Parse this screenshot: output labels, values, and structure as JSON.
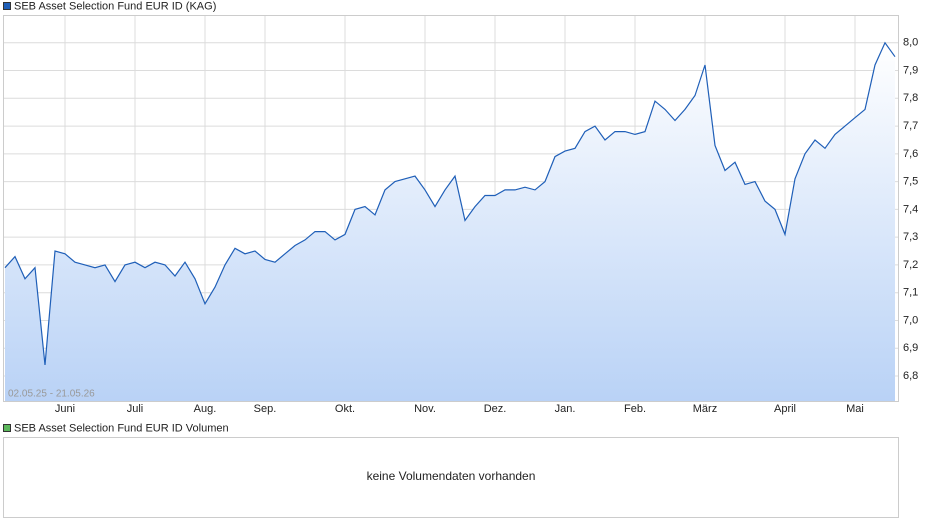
{
  "chart_data": {
    "type": "line",
    "range_label": "02.05.25 - 21.05.26",
    "categories": [
      null,
      null,
      null,
      null,
      null,
      null,
      "Juni",
      null,
      null,
      null,
      null,
      null,
      null,
      "Juli",
      null,
      null,
      null,
      null,
      null,
      null,
      "Aug.",
      null,
      null,
      null,
      null,
      null,
      "Sep.",
      null,
      null,
      null,
      null,
      null,
      null,
      null,
      "Okt.",
      null,
      null,
      null,
      null,
      null,
      null,
      null,
      "Nov.",
      null,
      null,
      null,
      null,
      null,
      null,
      "Dez.",
      null,
      null,
      null,
      null,
      null,
      null,
      "Jan.",
      null,
      null,
      null,
      null,
      null,
      null,
      "Feb.",
      null,
      null,
      null,
      null,
      null,
      null,
      "März",
      null,
      null,
      null,
      null,
      null,
      null,
      null,
      "April",
      null,
      null,
      null,
      null,
      null,
      null,
      "Mai",
      null,
      null,
      null,
      null
    ],
    "series": [
      {
        "name": "SEB Asset Selection Fund EUR ID (KAG)",
        "color": "#1f5fb8",
        "values": [
          7.19,
          7.23,
          7.15,
          7.19,
          6.84,
          7.25,
          7.24,
          7.21,
          7.2,
          7.19,
          7.2,
          7.14,
          7.2,
          7.21,
          7.19,
          7.21,
          7.2,
          7.16,
          7.21,
          7.15,
          7.06,
          7.12,
          7.2,
          7.26,
          7.24,
          7.25,
          7.22,
          7.21,
          7.24,
          7.27,
          7.29,
          7.32,
          7.32,
          7.29,
          7.31,
          7.4,
          7.41,
          7.38,
          7.47,
          7.5,
          7.51,
          7.52,
          7.47,
          7.41,
          7.47,
          7.52,
          7.36,
          7.41,
          7.45,
          7.45,
          7.47,
          7.47,
          7.48,
          7.47,
          7.5,
          7.59,
          7.61,
          7.62,
          7.68,
          7.7,
          7.65,
          7.68,
          7.68,
          7.67,
          7.68,
          7.79,
          7.76,
          7.72,
          7.76,
          7.81,
          7.92,
          7.63,
          7.54,
          7.57,
          7.49,
          7.5,
          7.43,
          7.4,
          7.31,
          7.51,
          7.6,
          7.65,
          7.62,
          7.67,
          7.7,
          7.73,
          7.76,
          7.92,
          8.0,
          7.95
        ]
      }
    ],
    "ylim": [
      6.71,
      8.1
    ],
    "yticks": [
      {
        "value": 6.8,
        "label": "6,8"
      },
      {
        "value": 6.9,
        "label": "6,9"
      },
      {
        "value": 7.0,
        "label": "7,0"
      },
      {
        "value": 7.1,
        "label": "7,1"
      },
      {
        "value": 7.2,
        "label": "7,2"
      },
      {
        "value": 7.3,
        "label": "7,3"
      },
      {
        "value": 7.4,
        "label": "7,4"
      },
      {
        "value": 7.5,
        "label": "7,5"
      },
      {
        "value": 7.6,
        "label": "7,6"
      },
      {
        "value": 7.7,
        "label": "7,7"
      },
      {
        "value": 7.8,
        "label": "7,8"
      },
      {
        "value": 7.9,
        "label": "7,9"
      },
      {
        "value": 8.0,
        "label": "8,0"
      }
    ],
    "grid": true
  },
  "volume_panel": {
    "title": "SEB Asset Selection Fund EUR ID Volumen",
    "color": "#5cb85c",
    "message": "keine Volumendaten vorhanden"
  }
}
